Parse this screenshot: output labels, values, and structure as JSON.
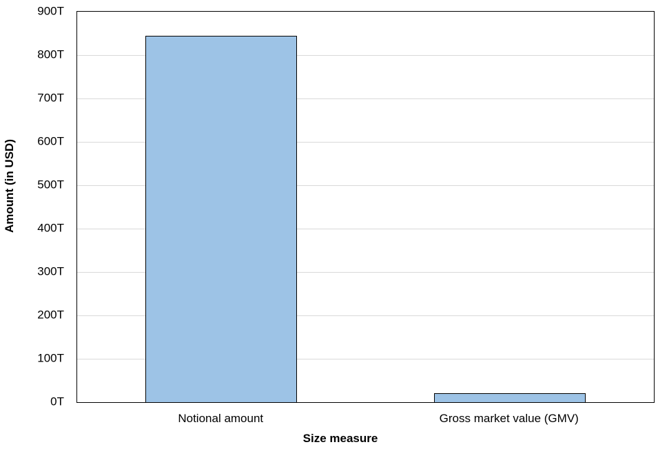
{
  "chart_data": {
    "type": "bar",
    "title": "",
    "xlabel": "Size measure",
    "ylabel": "Amount (in USD)",
    "categories": [
      "Notional amount",
      "Gross market value (GMV)"
    ],
    "values": [
      845,
      20
    ],
    "value_unit": "trillions of USD",
    "ylim": [
      0,
      900
    ],
    "ytick_step": 100,
    "ytick_labels": [
      "0T",
      "100T",
      "200T",
      "300T",
      "400T",
      "500T",
      "600T",
      "700T",
      "800T",
      "900T"
    ],
    "grid": "horizontal",
    "legend": false,
    "colors": {
      "bar_fill": "#9DC3E6",
      "bar_border": "#000000",
      "plot_border": "#000000",
      "gridline": "#D9D9D9",
      "text": "#000000",
      "background": "#FFFFFF"
    }
  }
}
